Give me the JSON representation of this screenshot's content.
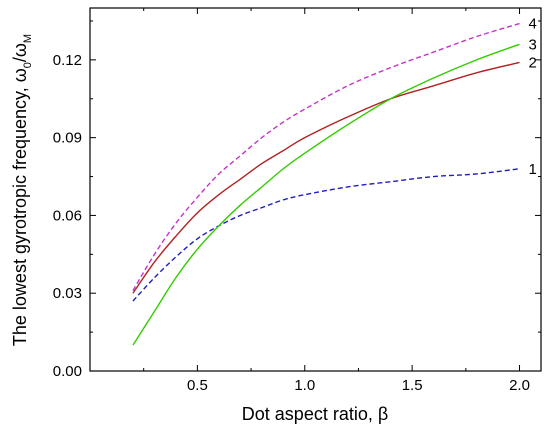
{
  "chart_data": {
    "type": "line",
    "xlabel": "Dot aspect ratio, β",
    "ylabel": {
      "main": "The lowest gyrotropic frequency, ω",
      "sub1": "0",
      "slash": "/ω",
      "sub2": "M"
    },
    "xlim": [
      0.0,
      2.1
    ],
    "ylim": [
      0.0,
      0.14
    ],
    "x_ticks": [
      0.5,
      1.0,
      1.5,
      2.0
    ],
    "x_tick_labels": [
      "0.5",
      "1.0",
      "1.5",
      "2.0"
    ],
    "y_ticks": [
      0.0,
      0.03,
      0.06,
      0.09,
      0.12
    ],
    "y_tick_labels": [
      "0.00",
      "0.03",
      "0.06",
      "0.09",
      "0.12"
    ],
    "grid": false,
    "legend": "none",
    "series": [
      {
        "name": "1",
        "color": "#1f1fbf",
        "style": "dashed",
        "x": [
          0.2,
          0.3,
          0.4,
          0.5,
          0.6,
          0.7,
          0.8,
          0.9,
          1.0,
          1.2,
          1.4,
          1.6,
          1.8,
          2.0
        ],
        "y": [
          0.027,
          0.036,
          0.044,
          0.051,
          0.056,
          0.06,
          0.063,
          0.066,
          0.068,
          0.071,
          0.073,
          0.075,
          0.076,
          0.078
        ]
      },
      {
        "name": "2",
        "color": "#b22222",
        "style": "solid",
        "x": [
          0.2,
          0.3,
          0.4,
          0.5,
          0.6,
          0.7,
          0.8,
          0.9,
          1.0,
          1.2,
          1.4,
          1.6,
          1.8,
          2.0
        ],
        "y": [
          0.03,
          0.042,
          0.052,
          0.061,
          0.068,
          0.074,
          0.08,
          0.085,
          0.09,
          0.098,
          0.105,
          0.11,
          0.115,
          0.119
        ]
      },
      {
        "name": "3",
        "color": "#33cc00",
        "style": "solid",
        "x": [
          0.2,
          0.3,
          0.4,
          0.5,
          0.6,
          0.7,
          0.8,
          0.9,
          1.0,
          1.2,
          1.4,
          1.6,
          1.8,
          2.0
        ],
        "y": [
          0.01,
          0.023,
          0.036,
          0.047,
          0.056,
          0.064,
          0.071,
          0.078,
          0.084,
          0.095,
          0.105,
          0.113,
          0.12,
          0.126
        ]
      },
      {
        "name": "4",
        "color": "#c633cc",
        "style": "dashed",
        "x": [
          0.2,
          0.3,
          0.4,
          0.5,
          0.6,
          0.7,
          0.8,
          0.9,
          1.0,
          1.2,
          1.4,
          1.6,
          1.8,
          2.0
        ],
        "y": [
          0.031,
          0.045,
          0.057,
          0.067,
          0.076,
          0.083,
          0.09,
          0.096,
          0.101,
          0.11,
          0.117,
          0.123,
          0.129,
          0.134
        ]
      }
    ]
  }
}
